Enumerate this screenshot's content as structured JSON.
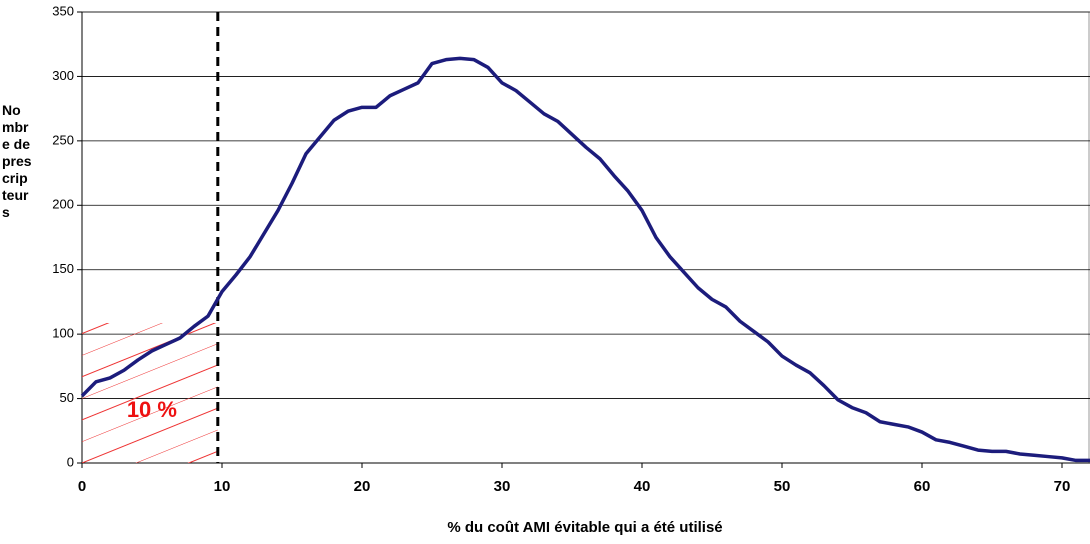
{
  "chart_data": {
    "type": "line",
    "x_label": "% du coût AMI évitable qui a été utilisé",
    "y_label": "Nombre de prescripteurs",
    "annotation": "10 %",
    "vline": 9.7,
    "x": [
      0,
      1,
      2,
      3,
      4,
      5,
      6,
      7,
      8,
      9,
      10,
      11,
      12,
      13,
      14,
      15,
      16,
      17,
      18,
      19,
      20,
      21,
      22,
      23,
      24,
      25,
      26,
      27,
      28,
      29,
      30,
      31,
      32,
      33,
      34,
      35,
      36,
      37,
      38,
      39,
      40,
      41,
      42,
      43,
      44,
      45,
      46,
      47,
      48,
      49,
      50,
      51,
      52,
      53,
      54,
      55,
      56,
      57,
      58,
      59,
      60,
      61,
      62,
      63,
      64,
      65,
      66,
      67,
      68,
      69,
      70,
      71,
      72
    ],
    "series": [
      {
        "name": "prescripteurs",
        "color": "#1c1c7c",
        "values": [
          52,
          63,
          66,
          72,
          80,
          87,
          92,
          97,
          106,
          114,
          133,
          146,
          160,
          178,
          196,
          217,
          240,
          253,
          266,
          273,
          276,
          276,
          285,
          290,
          295,
          310,
          313,
          314,
          313,
          307,
          295,
          289,
          280,
          271,
          265,
          255,
          245,
          236,
          223,
          211,
          196,
          175,
          160,
          148,
          136,
          127,
          121,
          110,
          102,
          94,
          83,
          76,
          70,
          60,
          49,
          43,
          39,
          32,
          30,
          28,
          24,
          18,
          16,
          13,
          10,
          9,
          9,
          7,
          6,
          5,
          4,
          2,
          2
        ]
      }
    ],
    "xlim": [
      0,
      72
    ],
    "xticks": [
      0,
      10,
      20,
      30,
      40,
      50,
      60,
      70
    ],
    "ylim": [
      0,
      350
    ],
    "yticks": [
      0,
      50,
      100,
      150,
      200,
      250,
      300,
      350
    ],
    "grid": true
  }
}
